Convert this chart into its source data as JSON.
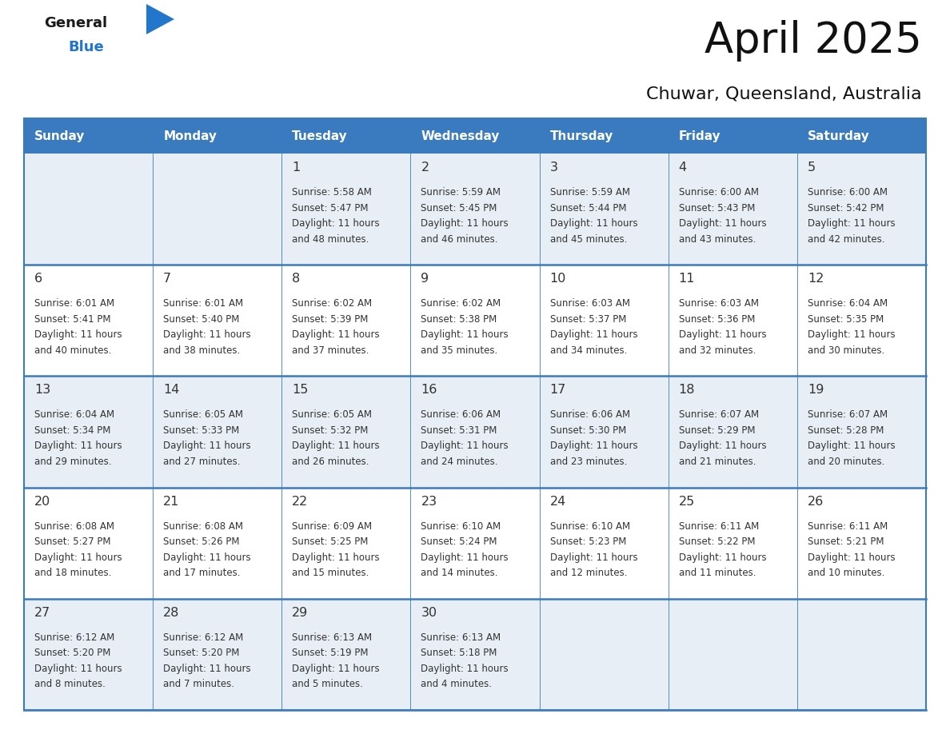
{
  "title": "April 2025",
  "subtitle": "Chuwar, Queensland, Australia",
  "days_of_week": [
    "Sunday",
    "Monday",
    "Tuesday",
    "Wednesday",
    "Thursday",
    "Friday",
    "Saturday"
  ],
  "header_bg": "#3a7abf",
  "header_text": "#ffffff",
  "row_bg_odd": "#e8eef5",
  "row_bg_even": "#ffffff",
  "border_color": "#3a7abf",
  "text_color": "#333333",
  "logo_black": "#1a1a1a",
  "logo_blue": "#2277cc",
  "calendar_data": [
    [
      null,
      null,
      {
        "day": 1,
        "sunrise": "5:58 AM",
        "sunset": "5:47 PM",
        "daylight": "11 hours and 48 minutes."
      },
      {
        "day": 2,
        "sunrise": "5:59 AM",
        "sunset": "5:45 PM",
        "daylight": "11 hours and 46 minutes."
      },
      {
        "day": 3,
        "sunrise": "5:59 AM",
        "sunset": "5:44 PM",
        "daylight": "11 hours and 45 minutes."
      },
      {
        "day": 4,
        "sunrise": "6:00 AM",
        "sunset": "5:43 PM",
        "daylight": "11 hours and 43 minutes."
      },
      {
        "day": 5,
        "sunrise": "6:00 AM",
        "sunset": "5:42 PM",
        "daylight": "11 hours and 42 minutes."
      }
    ],
    [
      {
        "day": 6,
        "sunrise": "6:01 AM",
        "sunset": "5:41 PM",
        "daylight": "11 hours and 40 minutes."
      },
      {
        "day": 7,
        "sunrise": "6:01 AM",
        "sunset": "5:40 PM",
        "daylight": "11 hours and 38 minutes."
      },
      {
        "day": 8,
        "sunrise": "6:02 AM",
        "sunset": "5:39 PM",
        "daylight": "11 hours and 37 minutes."
      },
      {
        "day": 9,
        "sunrise": "6:02 AM",
        "sunset": "5:38 PM",
        "daylight": "11 hours and 35 minutes."
      },
      {
        "day": 10,
        "sunrise": "6:03 AM",
        "sunset": "5:37 PM",
        "daylight": "11 hours and 34 minutes."
      },
      {
        "day": 11,
        "sunrise": "6:03 AM",
        "sunset": "5:36 PM",
        "daylight": "11 hours and 32 minutes."
      },
      {
        "day": 12,
        "sunrise": "6:04 AM",
        "sunset": "5:35 PM",
        "daylight": "11 hours and 30 minutes."
      }
    ],
    [
      {
        "day": 13,
        "sunrise": "6:04 AM",
        "sunset": "5:34 PM",
        "daylight": "11 hours and 29 minutes."
      },
      {
        "day": 14,
        "sunrise": "6:05 AM",
        "sunset": "5:33 PM",
        "daylight": "11 hours and 27 minutes."
      },
      {
        "day": 15,
        "sunrise": "6:05 AM",
        "sunset": "5:32 PM",
        "daylight": "11 hours and 26 minutes."
      },
      {
        "day": 16,
        "sunrise": "6:06 AM",
        "sunset": "5:31 PM",
        "daylight": "11 hours and 24 minutes."
      },
      {
        "day": 17,
        "sunrise": "6:06 AM",
        "sunset": "5:30 PM",
        "daylight": "11 hours and 23 minutes."
      },
      {
        "day": 18,
        "sunrise": "6:07 AM",
        "sunset": "5:29 PM",
        "daylight": "11 hours and 21 minutes."
      },
      {
        "day": 19,
        "sunrise": "6:07 AM",
        "sunset": "5:28 PM",
        "daylight": "11 hours and 20 minutes."
      }
    ],
    [
      {
        "day": 20,
        "sunrise": "6:08 AM",
        "sunset": "5:27 PM",
        "daylight": "11 hours and 18 minutes."
      },
      {
        "day": 21,
        "sunrise": "6:08 AM",
        "sunset": "5:26 PM",
        "daylight": "11 hours and 17 minutes."
      },
      {
        "day": 22,
        "sunrise": "6:09 AM",
        "sunset": "5:25 PM",
        "daylight": "11 hours and 15 minutes."
      },
      {
        "day": 23,
        "sunrise": "6:10 AM",
        "sunset": "5:24 PM",
        "daylight": "11 hours and 14 minutes."
      },
      {
        "day": 24,
        "sunrise": "6:10 AM",
        "sunset": "5:23 PM",
        "daylight": "11 hours and 12 minutes."
      },
      {
        "day": 25,
        "sunrise": "6:11 AM",
        "sunset": "5:22 PM",
        "daylight": "11 hours and 11 minutes."
      },
      {
        "day": 26,
        "sunrise": "6:11 AM",
        "sunset": "5:21 PM",
        "daylight": "11 hours and 10 minutes."
      }
    ],
    [
      {
        "day": 27,
        "sunrise": "6:12 AM",
        "sunset": "5:20 PM",
        "daylight": "11 hours and 8 minutes."
      },
      {
        "day": 28,
        "sunrise": "6:12 AM",
        "sunset": "5:20 PM",
        "daylight": "11 hours and 7 minutes."
      },
      {
        "day": 29,
        "sunrise": "6:13 AM",
        "sunset": "5:19 PM",
        "daylight": "11 hours and 5 minutes."
      },
      {
        "day": 30,
        "sunrise": "6:13 AM",
        "sunset": "5:18 PM",
        "daylight": "11 hours and 4 minutes."
      },
      null,
      null,
      null
    ]
  ]
}
